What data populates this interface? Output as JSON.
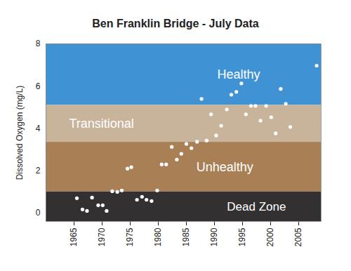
{
  "chart_data": {
    "type": "scatter",
    "title": "Ben Franklin Bridge - July Data",
    "y_label": "Dissolved Oxygen (mg/L)",
    "x": [
      1965.5,
      1966.5,
      1967.3,
      1968.2,
      1969.3,
      1970.1,
      1970.8,
      1971.8,
      1972.7,
      1973.5,
      1974.5,
      1975.2,
      1976.2,
      1977.1,
      1977.9,
      1978.8,
      1979.8,
      1980.6,
      1981.4,
      1982.4,
      1983.3,
      1984.1,
      1985.0,
      1985.9,
      1986.9,
      1987.7,
      1988.6,
      1989.4,
      1990.3,
      1991.2,
      1992.2,
      1993.0,
      1993.9,
      1994.8,
      1995.6,
      1996.5,
      1997.3,
      1998.2,
      1999.2,
      2000.1,
      2000.9,
      2001.8,
      2002.7,
      2003.5,
      2008.2
    ],
    "values": [
      0.7,
      0.17,
      0.1,
      0.73,
      0.37,
      0.37,
      0.1,
      1.03,
      1.0,
      1.07,
      2.1,
      2.17,
      0.63,
      0.77,
      0.63,
      0.57,
      1.07,
      2.3,
      2.3,
      3.13,
      2.53,
      2.8,
      3.27,
      3.07,
      3.37,
      5.4,
      3.43,
      4.67,
      3.67,
      4.13,
      4.9,
      5.6,
      5.73,
      6.13,
      4.67,
      5.07,
      5.07,
      4.37,
      5.07,
      4.53,
      3.77,
      5.87,
      5.17,
      4.07,
      6.97
    ],
    "color": "#ffffff",
    "marker": "circle",
    "xlim": [
      1960,
      2009
    ],
    "xticks": [
      1965,
      1970,
      1975,
      1980,
      1985,
      1990,
      1995,
      2000,
      2005
    ],
    "ylim": [
      -0.4,
      8
    ],
    "yticks": [
      0,
      2,
      4,
      6,
      8
    ],
    "bands": [
      {
        "label": "Healthy",
        "from": 5.1,
        "to": 8,
        "color": "#3f93d4"
      },
      {
        "label": "Transitional",
        "from": 3.35,
        "to": 5.1,
        "color": "#c8b49b"
      },
      {
        "label": "Unhealthy",
        "from": 1.0,
        "to": 3.35,
        "color": "#a97f56"
      },
      {
        "label": "Dead Zone",
        "from": -0.4,
        "to": 1.0,
        "color": "#333031"
      }
    ]
  }
}
